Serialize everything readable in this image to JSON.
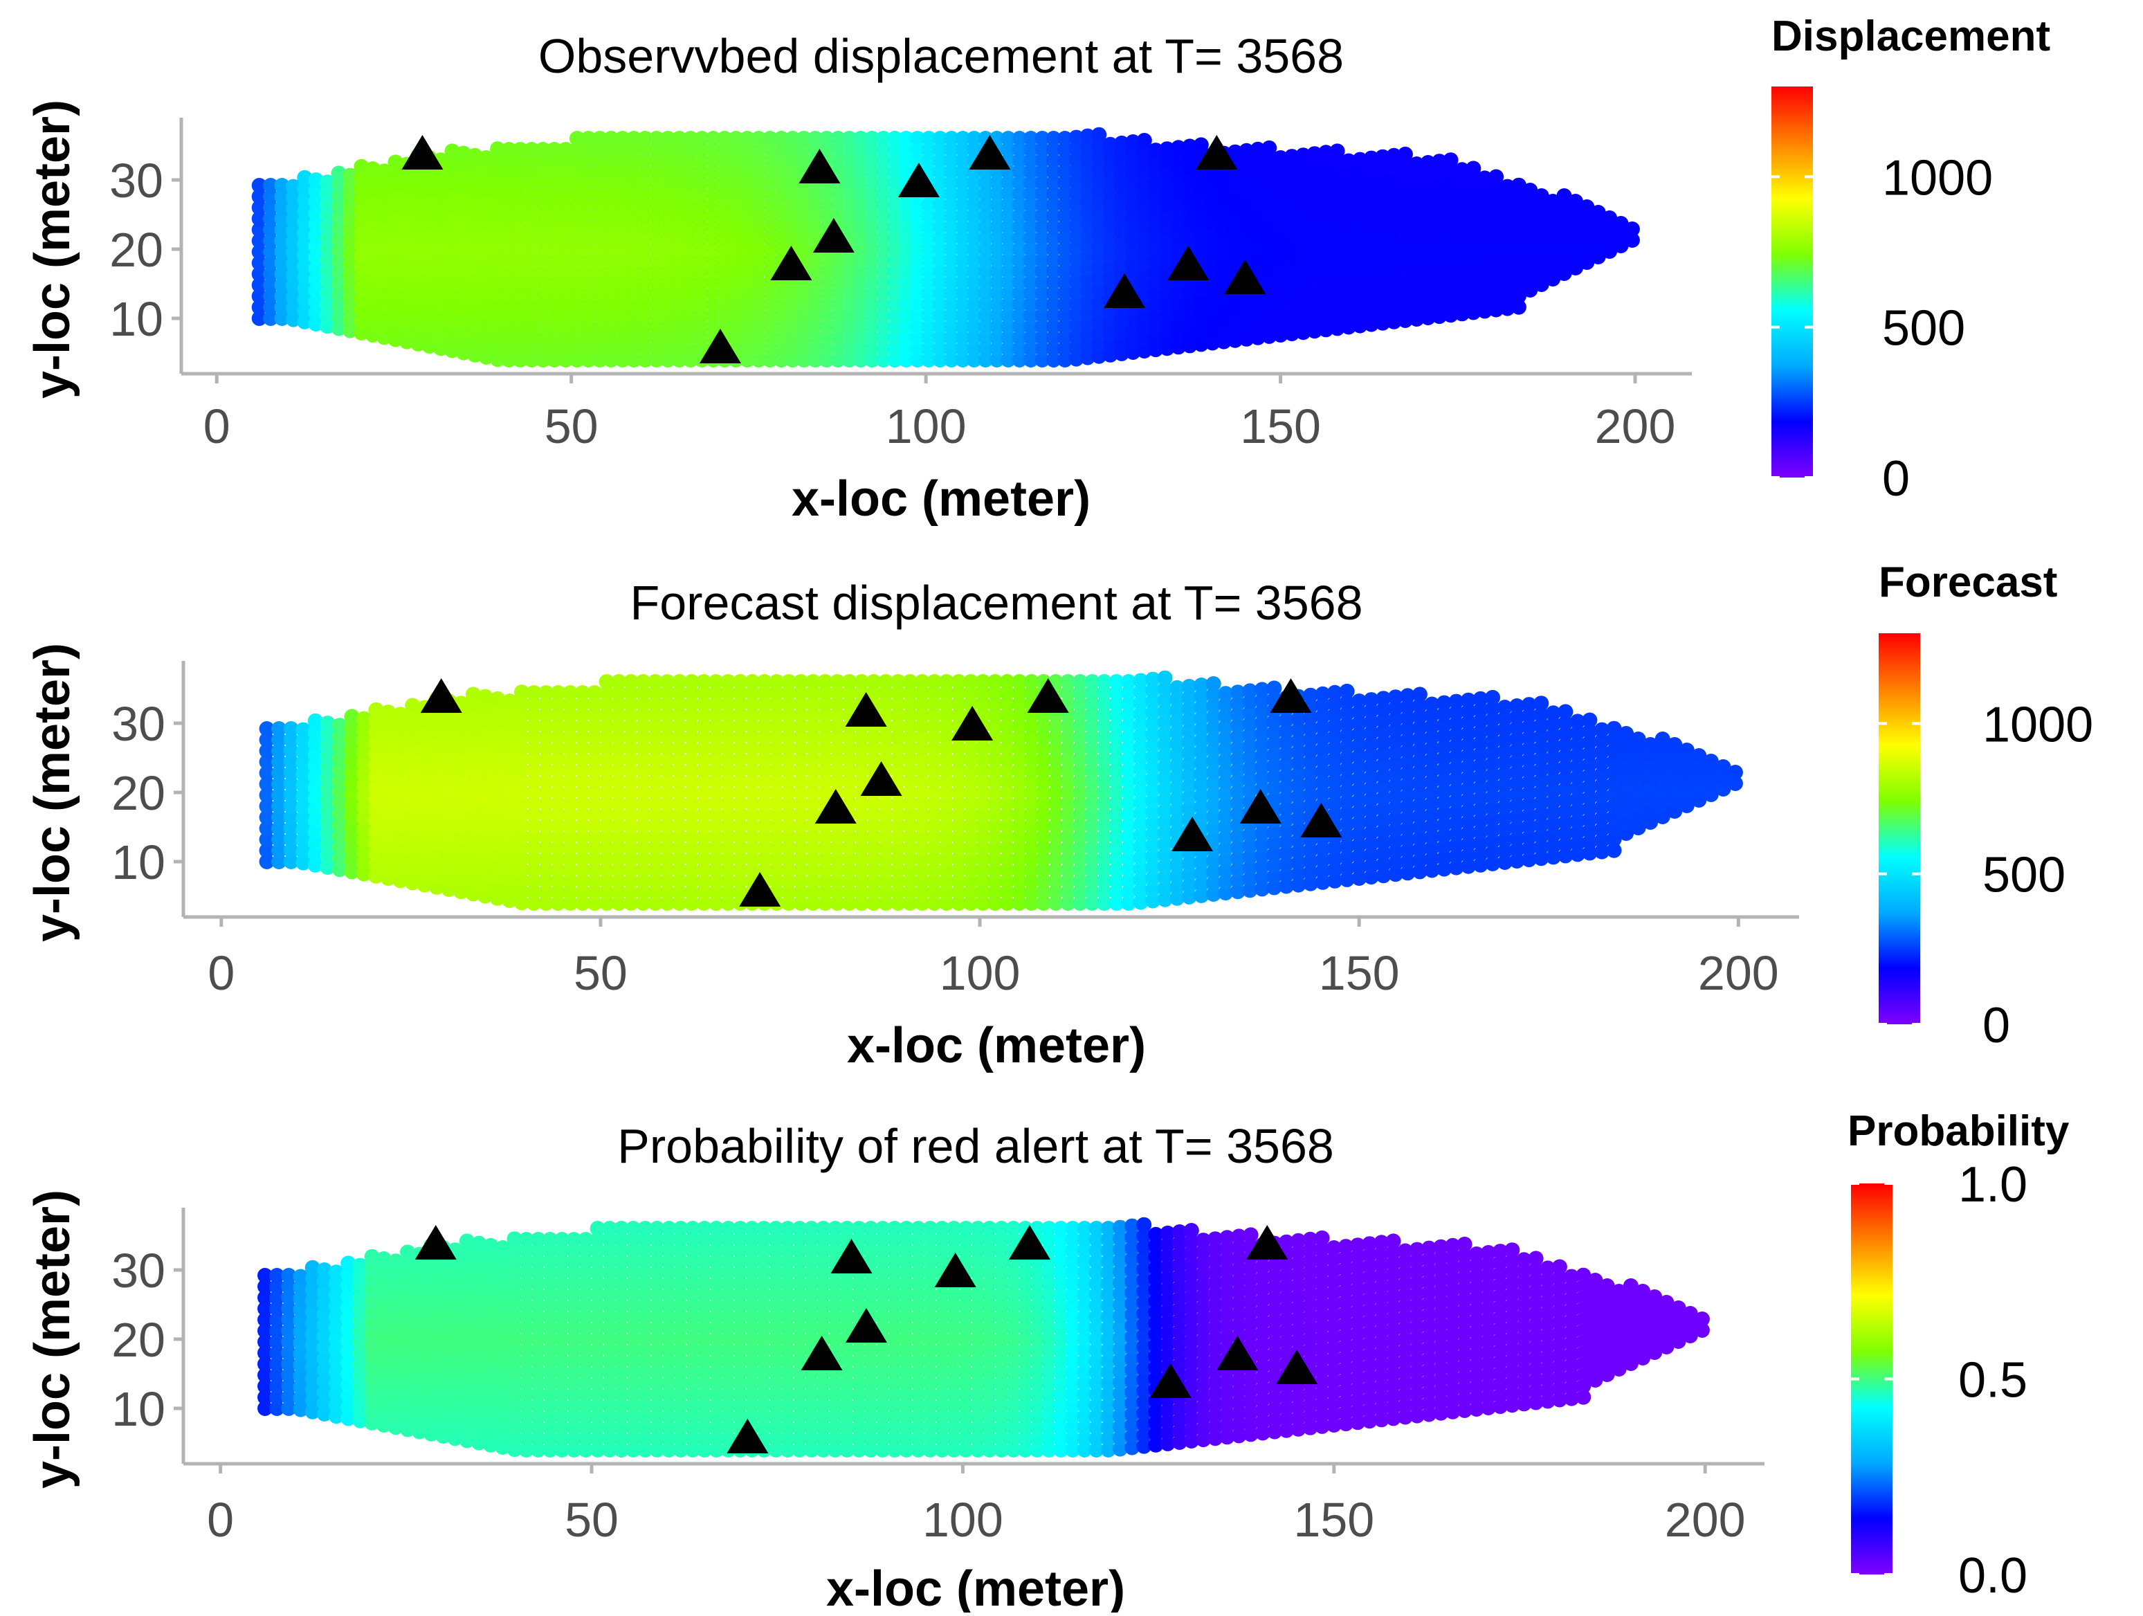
{
  "colors": {
    "rainbow": [
      "#7f00ff",
      "#0000ff",
      "#00aaff",
      "#00ffff",
      "#80ff00",
      "#ffff00",
      "#ff8000",
      "#ff0000"
    ],
    "axis": "#b3b3b3",
    "tick_text": "#4d4d4d",
    "marker": "#000000"
  },
  "chart_data": [
    {
      "type": "scatter",
      "title": "Observvbed displacement at T= 3568",
      "xlabel": "x-loc (meter)",
      "ylabel": "y-loc (meter)",
      "xlim": [
        -5,
        208
      ],
      "ylim": [
        2,
        39
      ],
      "xticks": [
        0,
        50,
        100,
        150,
        200
      ],
      "yticks": [
        10,
        20,
        30
      ],
      "legend": {
        "title": "Displacement",
        "min": 0,
        "max": 1300,
        "ticks": [
          0,
          500,
          1000
        ],
        "position": "right"
      },
      "field": "displacement",
      "field_params": {
        "plateau": 770,
        "plateau_end_x": 80,
        "transition_x": 105,
        "tail": 180,
        "gradient_width": 38
      },
      "sensors": [
        {
          "x": 29,
          "y": 34
        },
        {
          "x": 85,
          "y": 32
        },
        {
          "x": 99,
          "y": 30
        },
        {
          "x": 109,
          "y": 34
        },
        {
          "x": 141,
          "y": 34
        },
        {
          "x": 87,
          "y": 22
        },
        {
          "x": 81,
          "y": 18
        },
        {
          "x": 137,
          "y": 18
        },
        {
          "x": 145,
          "y": 16
        },
        {
          "x": 128,
          "y": 14
        },
        {
          "x": 71,
          "y": 6
        }
      ]
    },
    {
      "type": "scatter",
      "title": "Forecast displacement at T=  3568",
      "xlabel": "x-loc (meter)",
      "ylabel": "y-loc (meter)",
      "xlim": [
        -5,
        208
      ],
      "ylim": [
        2,
        39
      ],
      "xticks": [
        0,
        50,
        100,
        150,
        200
      ],
      "yticks": [
        10,
        20,
        30
      ],
      "legend": {
        "title": "Forecast",
        "min": 0,
        "max": 1300,
        "ticks": [
          0,
          500,
          1000
        ],
        "position": "right"
      },
      "field": "forecast",
      "field_params": {
        "plateau": 860,
        "plateau_end_x": 95,
        "transition_x": 120,
        "tail": 260,
        "gradient_width": 30
      },
      "sensors": [
        {
          "x": 29,
          "y": 34
        },
        {
          "x": 85,
          "y": 32
        },
        {
          "x": 99,
          "y": 30
        },
        {
          "x": 109,
          "y": 34
        },
        {
          "x": 141,
          "y": 34
        },
        {
          "x": 87,
          "y": 22
        },
        {
          "x": 81,
          "y": 18
        },
        {
          "x": 137,
          "y": 18
        },
        {
          "x": 145,
          "y": 16
        },
        {
          "x": 128,
          "y": 14
        },
        {
          "x": 71,
          "y": 6
        }
      ]
    },
    {
      "type": "scatter",
      "title": "Probability of red alert at T= 3568",
      "xlabel": "x-loc (meter)",
      "ylabel": "y-loc (meter)",
      "xlim": [
        -5,
        208
      ],
      "ylim": [
        2,
        39
      ],
      "xticks": [
        0,
        50,
        100,
        150,
        200
      ],
      "yticks": [
        10,
        20,
        30
      ],
      "legend": {
        "title": "Probability",
        "min": 0.0,
        "max": 1.0,
        "ticks": [
          0.0,
          0.5,
          1.0
        ],
        "tick_labels": [
          "0.0",
          "0.5",
          "1.0"
        ],
        "position": "right"
      },
      "field": "probability",
      "field_params": {
        "plateau": 0.5,
        "plateau_end_x": 100,
        "transition_x": 122,
        "tail": 0.02,
        "gradient_width": 16
      },
      "sensors": [
        {
          "x": 29,
          "y": 34
        },
        {
          "x": 85,
          "y": 32
        },
        {
          "x": 99,
          "y": 30
        },
        {
          "x": 109,
          "y": 34
        },
        {
          "x": 141,
          "y": 34
        },
        {
          "x": 87,
          "y": 22
        },
        {
          "x": 81,
          "y": 18
        },
        {
          "x": 137,
          "y": 18
        },
        {
          "x": 145,
          "y": 16
        },
        {
          "x": 128,
          "y": 14
        },
        {
          "x": 71,
          "y": 6
        }
      ]
    }
  ]
}
